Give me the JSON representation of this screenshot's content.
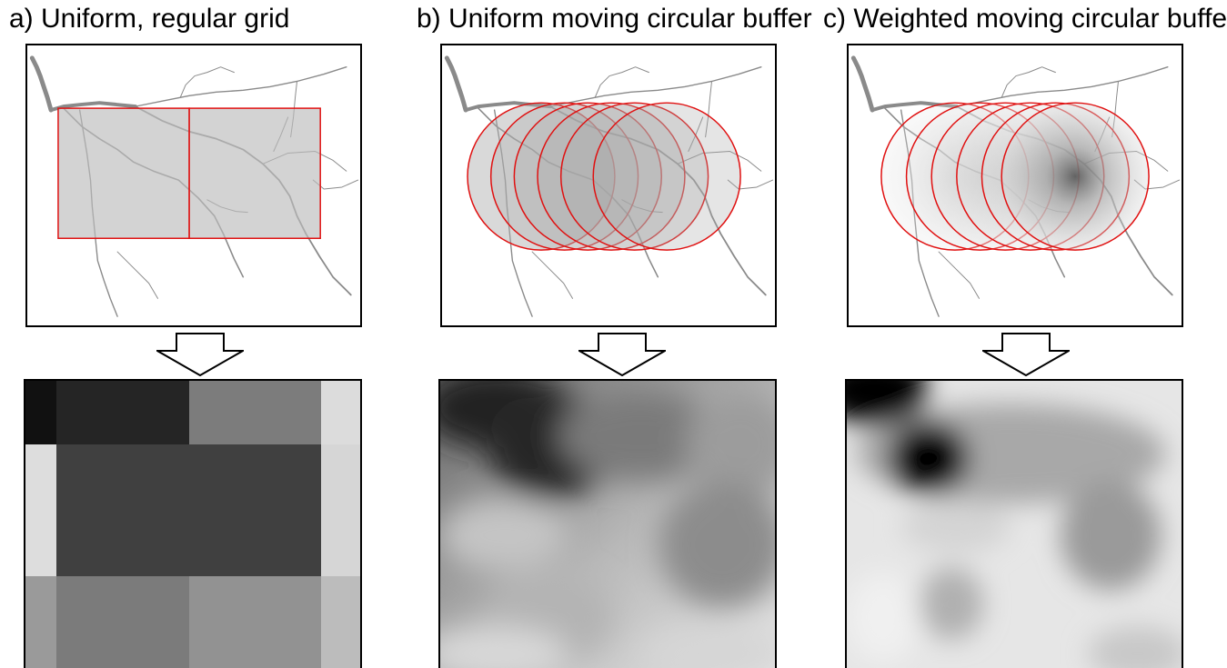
{
  "panels": [
    {
      "id": "a",
      "title": "a) Uniform, regular grid",
      "method": "grid"
    },
    {
      "id": "b",
      "title": "b) Uniform moving circular buffer",
      "method": "uniform-buffer"
    },
    {
      "id": "c",
      "title": "c) Weighted moving circular buffer",
      "method": "weighted-buffer"
    }
  ],
  "colors": {
    "buffer_outline": "#e01010",
    "buffer_fill": "#aaaaaa",
    "river": "#8a8a8a",
    "frame": "#000000"
  },
  "grid_result_gray_levels": [
    [
      "#111111",
      "#252525",
      "#7c7c7c",
      "#dcdcdc"
    ],
    [
      "#dddddd",
      "#404040",
      "#404040",
      "#d6d6d6"
    ],
    [
      "#9a9a9a",
      "#7b7b7b",
      "#929292",
      "#bcbcbc"
    ]
  ]
}
